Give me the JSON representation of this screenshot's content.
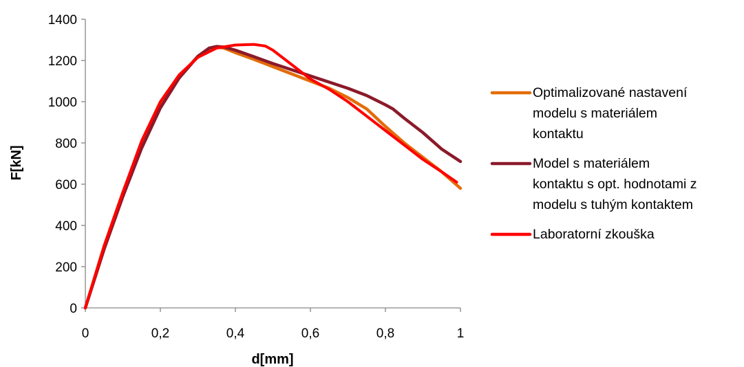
{
  "chart_data": {
    "type": "line",
    "title": "",
    "xlabel": "d[mm]",
    "ylabel": "F[kN]",
    "xlim": [
      0,
      1
    ],
    "ylim": [
      0,
      1400
    ],
    "x_ticks": [
      0,
      0.2,
      0.4,
      0.6,
      0.8,
      1
    ],
    "x_tick_labels": [
      "0",
      "0,2",
      "0,4",
      "0,6",
      "0,8",
      "1"
    ],
    "y_ticks": [
      0,
      200,
      400,
      600,
      800,
      1000,
      1200,
      1400
    ],
    "y_tick_labels": [
      "0",
      "200",
      "400",
      "600",
      "800",
      "1000",
      "1200",
      "1400"
    ],
    "grid": false,
    "legend_position": "right",
    "series": [
      {
        "name": "Optimalizované nastavení modelu s materiálem kontaktu",
        "legend_lines": [
          "Optimalizované nastavení",
          "modelu s materiálem",
          "kontaktu"
        ],
        "color": "#E36C0A",
        "x": [
          0,
          0.05,
          0.1,
          0.15,
          0.2,
          0.25,
          0.3,
          0.33,
          0.35,
          0.37,
          0.4,
          0.45,
          0.5,
          0.55,
          0.6,
          0.65,
          0.7,
          0.75,
          0.8,
          0.85,
          0.9,
          0.95,
          1.0
        ],
        "y": [
          0,
          300,
          560,
          800,
          990,
          1120,
          1220,
          1257,
          1265,
          1260,
          1238,
          1205,
          1170,
          1135,
          1100,
          1065,
          1020,
          965,
          880,
          800,
          730,
          660,
          580
        ]
      },
      {
        "name": "Model s materiálem kontaktu s opt. hodnotami z modelu s tuhým kontaktem",
        "legend_lines": [
          "Model s materiálem",
          "kontaktu s opt. hodnotami z",
          "modelu s tuhým kontaktem"
        ],
        "color": "#8B1A2A",
        "x": [
          0,
          0.05,
          0.1,
          0.15,
          0.2,
          0.25,
          0.3,
          0.33,
          0.35,
          0.37,
          0.4,
          0.45,
          0.5,
          0.55,
          0.6,
          0.65,
          0.7,
          0.75,
          0.8,
          0.82,
          0.85,
          0.9,
          0.95,
          1.0
        ],
        "y": [
          0,
          285,
          540,
          775,
          970,
          1115,
          1220,
          1260,
          1268,
          1265,
          1250,
          1218,
          1185,
          1155,
          1125,
          1095,
          1065,
          1030,
          985,
          965,
          920,
          850,
          770,
          710
        ]
      },
      {
        "name": "Laboratorní zkouška",
        "legend_lines": [
          "Laboratorní zkouška"
        ],
        "color": "#FF0000",
        "x": [
          0,
          0.05,
          0.1,
          0.15,
          0.2,
          0.25,
          0.3,
          0.35,
          0.4,
          0.45,
          0.48,
          0.5,
          0.55,
          0.6,
          0.65,
          0.7,
          0.75,
          0.8,
          0.85,
          0.9,
          0.95,
          0.99
        ],
        "y": [
          0,
          300,
          560,
          810,
          1000,
          1130,
          1215,
          1260,
          1275,
          1278,
          1270,
          1250,
          1180,
          1110,
          1060,
          1000,
          930,
          860,
          790,
          720,
          660,
          610
        ]
      }
    ]
  }
}
